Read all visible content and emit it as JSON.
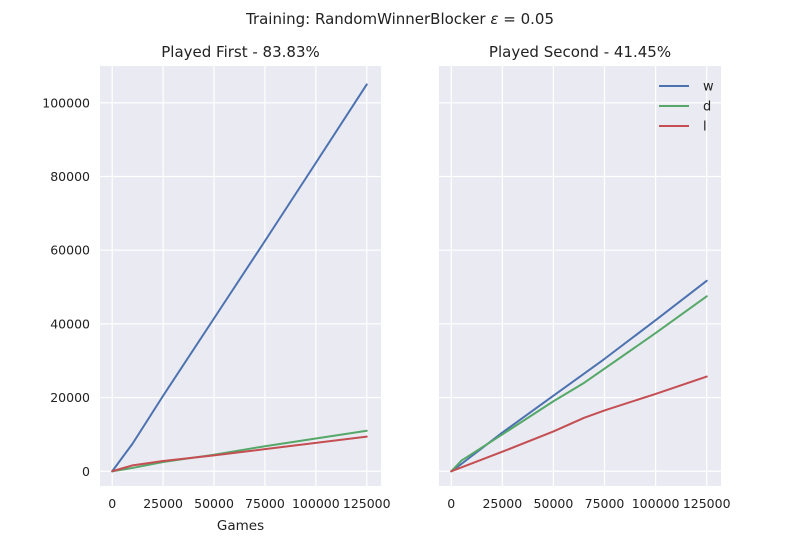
{
  "suptitle": {
    "prefix": "Training:  RandomWinnerBlocker ",
    "symbol": "ε",
    "suffix": " = 0.05"
  },
  "colors": {
    "w": "#4C72B0",
    "d": "#55A868",
    "l": "#C44E52",
    "panel_background": "#EAEAF2",
    "grid": "#FFFFFF"
  },
  "chart_data": [
    {
      "type": "line",
      "title": "Played First - 83.83%",
      "xlabel": "Games",
      "ylabel": "",
      "xlim": [
        -6000,
        132000
      ],
      "ylim": [
        -4000,
        110000
      ],
      "xticks": [
        0,
        25000,
        50000,
        75000,
        100000,
        125000
      ],
      "yticks": [
        0,
        20000,
        40000,
        60000,
        80000,
        100000
      ],
      "show_yticklabels": true,
      "grid": true,
      "legend": null,
      "series": [
        {
          "name": "w",
          "x": [
            0,
            10000,
            25000,
            50000,
            75000,
            100000,
            125000
          ],
          "y": [
            0,
            7500,
            20500,
            41500,
            62500,
            83700,
            105000
          ]
        },
        {
          "name": "d",
          "x": [
            0,
            10000,
            25000,
            50000,
            75000,
            100000,
            125000
          ],
          "y": [
            0,
            900,
            2500,
            4500,
            6800,
            8900,
            11000
          ]
        },
        {
          "name": "l",
          "x": [
            0,
            10000,
            25000,
            50000,
            75000,
            100000,
            125000
          ],
          "y": [
            0,
            1600,
            2800,
            4300,
            6000,
            7700,
            9400
          ]
        }
      ]
    },
    {
      "type": "line",
      "title": "Played Second - 41.45%",
      "xlabel": "",
      "ylabel": "",
      "xlim": [
        -6000,
        132000
      ],
      "ylim": [
        -4000,
        110000
      ],
      "xticks": [
        0,
        25000,
        50000,
        75000,
        100000,
        125000
      ],
      "yticks": [
        0,
        20000,
        40000,
        60000,
        80000,
        100000
      ],
      "show_yticklabels": false,
      "grid": true,
      "legend": {
        "placement": "top-right",
        "entries": [
          "w",
          "d",
          "l"
        ]
      },
      "series": [
        {
          "name": "w",
          "x": [
            0,
            5000,
            25000,
            50000,
            75000,
            100000,
            125000
          ],
          "y": [
            0,
            2000,
            10500,
            20500,
            30500,
            41000,
            51700
          ]
        },
        {
          "name": "d",
          "x": [
            0,
            5000,
            25000,
            50000,
            65000,
            100000,
            125000
          ],
          "y": [
            0,
            2900,
            10000,
            19000,
            24000,
            37500,
            47500
          ]
        },
        {
          "name": "l",
          "x": [
            0,
            25000,
            50000,
            65000,
            75000,
            100000,
            125000
          ],
          "y": [
            0,
            5300,
            10800,
            14500,
            16500,
            21000,
            25700
          ]
        }
      ]
    }
  ]
}
